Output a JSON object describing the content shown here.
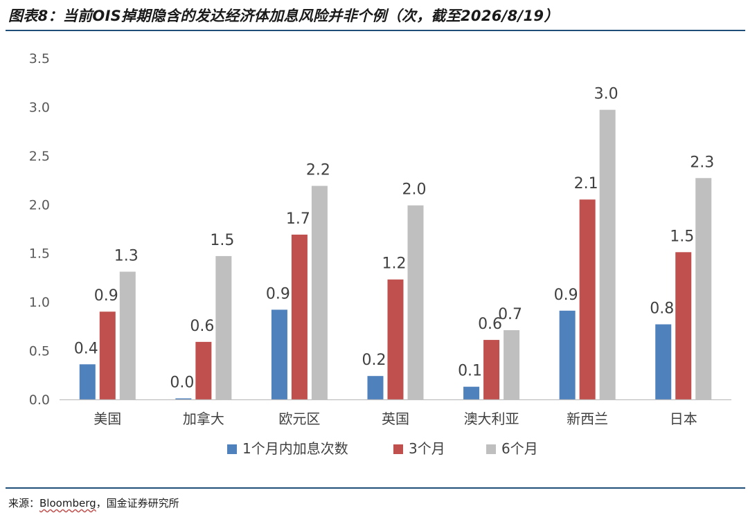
{
  "title": "图表8：当前OIS掉期隐含的发达经济体加息风险并非个例（次，截至2026/8/19）",
  "source": {
    "prefix": "来源：",
    "name": "Bloomberg",
    "suffix": "，国金证券研究所"
  },
  "chart_data": {
    "type": "bar",
    "categories": [
      "美国",
      "加拿大",
      "欧元区",
      "英国",
      "澳大利亚",
      "新西兰",
      "日本"
    ],
    "series": [
      {
        "name": "1个月内加息次数",
        "color": "#4f81bd",
        "values": [
          0.36,
          0.01,
          0.92,
          0.24,
          0.13,
          0.91,
          0.77
        ],
        "labels": [
          "0.4",
          "0.0",
          "0.9",
          "0.2",
          "0.1",
          "0.9",
          "0.8"
        ]
      },
      {
        "name": "3个月",
        "color": "#c0504d",
        "values": [
          0.9,
          0.59,
          1.69,
          1.23,
          0.61,
          2.05,
          1.51
        ],
        "labels": [
          "0.9",
          "0.6",
          "1.7",
          "1.2",
          "0.6",
          "2.1",
          "1.5"
        ]
      },
      {
        "name": "6个月",
        "color": "#bfbfbf",
        "values": [
          1.31,
          1.47,
          2.19,
          1.99,
          0.71,
          2.97,
          2.27
        ],
        "labels": [
          "1.3",
          "1.5",
          "2.2",
          "2.0",
          "0.7",
          "3.0",
          "2.3"
        ]
      }
    ],
    "ylim": [
      0,
      3.5
    ],
    "yticks": [
      "0.0",
      "0.5",
      "1.0",
      "1.5",
      "2.0",
      "2.5",
      "3.0",
      "3.5"
    ],
    "xlabel": "",
    "ylabel": "",
    "grid": false,
    "legend_position": "bottom"
  }
}
